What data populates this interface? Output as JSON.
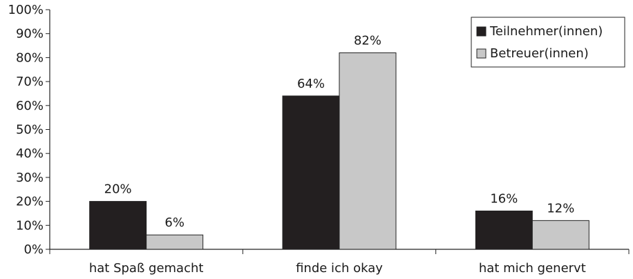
{
  "chart_data": {
    "type": "bar",
    "categories": [
      "hat Spaß gemacht",
      "finde ich okay",
      "hat mich genervt"
    ],
    "series": [
      {
        "name": "Teilnehmer(innen)",
        "values": [
          20,
          64,
          16
        ],
        "color": "#231f20",
        "value_labels": [
          "20%",
          "64%",
          "16%"
        ]
      },
      {
        "name": "Betreuer(innen)",
        "values": [
          6,
          82,
          12
        ],
        "color": "#c8c8c8",
        "value_labels": [
          "6%",
          "82%",
          "12%"
        ]
      }
    ],
    "ylim": [
      0,
      100
    ],
    "y_ticks": [
      "0%",
      "10%",
      "20%",
      "30%",
      "40%",
      "50%",
      "60%",
      "70%",
      "80%",
      "90%",
      "100%"
    ],
    "legend_position": "top-right",
    "grid": false,
    "title": "",
    "xlabel": "",
    "ylabel": ""
  }
}
